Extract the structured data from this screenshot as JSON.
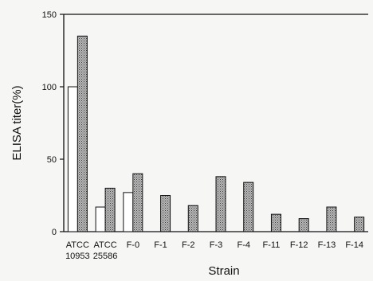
{
  "chart_data": {
    "type": "bar",
    "title": "",
    "xlabel": "Strain",
    "ylabel": "ELISA titer(%)",
    "ylim": [
      0,
      150
    ],
    "yticks": [
      0,
      50,
      100,
      150
    ],
    "categories": [
      [
        "ATCC",
        "10953"
      ],
      [
        "ATCC",
        "25586"
      ],
      [
        "F-0"
      ],
      [
        "F-1"
      ],
      [
        "F-2"
      ],
      [
        "F-3"
      ],
      [
        "F-4"
      ],
      [
        "F-11"
      ],
      [
        "F-12"
      ],
      [
        "F-13"
      ],
      [
        "F-14"
      ]
    ],
    "series": [
      {
        "values": [
          100,
          17,
          27,
          0,
          0,
          0,
          0,
          0,
          0,
          0,
          0
        ],
        "color": "#ffffff",
        "pattern": "none"
      },
      {
        "values": [
          135,
          30,
          40,
          25,
          18,
          38,
          34,
          12,
          9,
          17,
          10
        ],
        "color": "#9a9a9a",
        "pattern": "dotted-gray"
      }
    ],
    "grid": false,
    "legend": "none"
  }
}
